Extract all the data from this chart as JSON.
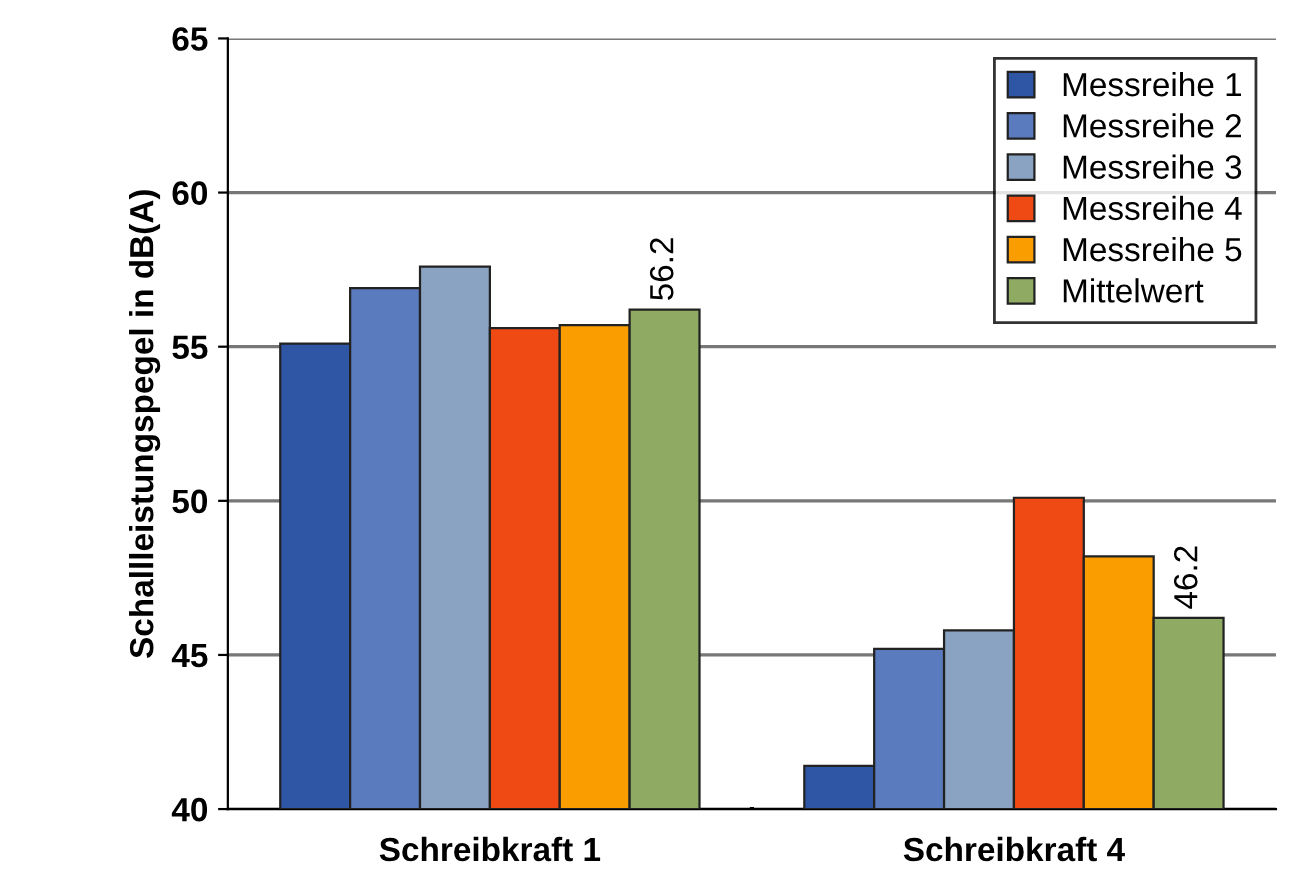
{
  "chart_data": {
    "type": "bar",
    "ylabel": "Schallleistungspegel in dB(A)",
    "categories": [
      "Schreibkraft 1",
      "Schreibkraft 4"
    ],
    "series": [
      {
        "name": "Messreihe 1",
        "color": "#2e56a4",
        "values": [
          55.1,
          41.4
        ]
      },
      {
        "name": "Messreihe 2",
        "color": "#5a7bbd",
        "values": [
          56.9,
          45.2
        ]
      },
      {
        "name": "Messreihe 3",
        "color": "#8ba3c2",
        "values": [
          57.6,
          45.8
        ]
      },
      {
        "name": "Messreihe 4",
        "color": "#f04a14",
        "values": [
          55.6,
          50.1
        ]
      },
      {
        "name": "Messreihe 5",
        "color": "#f99d00",
        "values": [
          55.7,
          48.2
        ]
      },
      {
        "name": "Mittelwert",
        "color": "#8fab63",
        "values": [
          56.2,
          46.2
        ],
        "value_labels": [
          "56.2",
          "46.2"
        ]
      }
    ],
    "ylim": [
      40,
      65
    ],
    "yticks": [
      40,
      45,
      50,
      55,
      60,
      65
    ],
    "grid": "y",
    "legend": "top right"
  }
}
